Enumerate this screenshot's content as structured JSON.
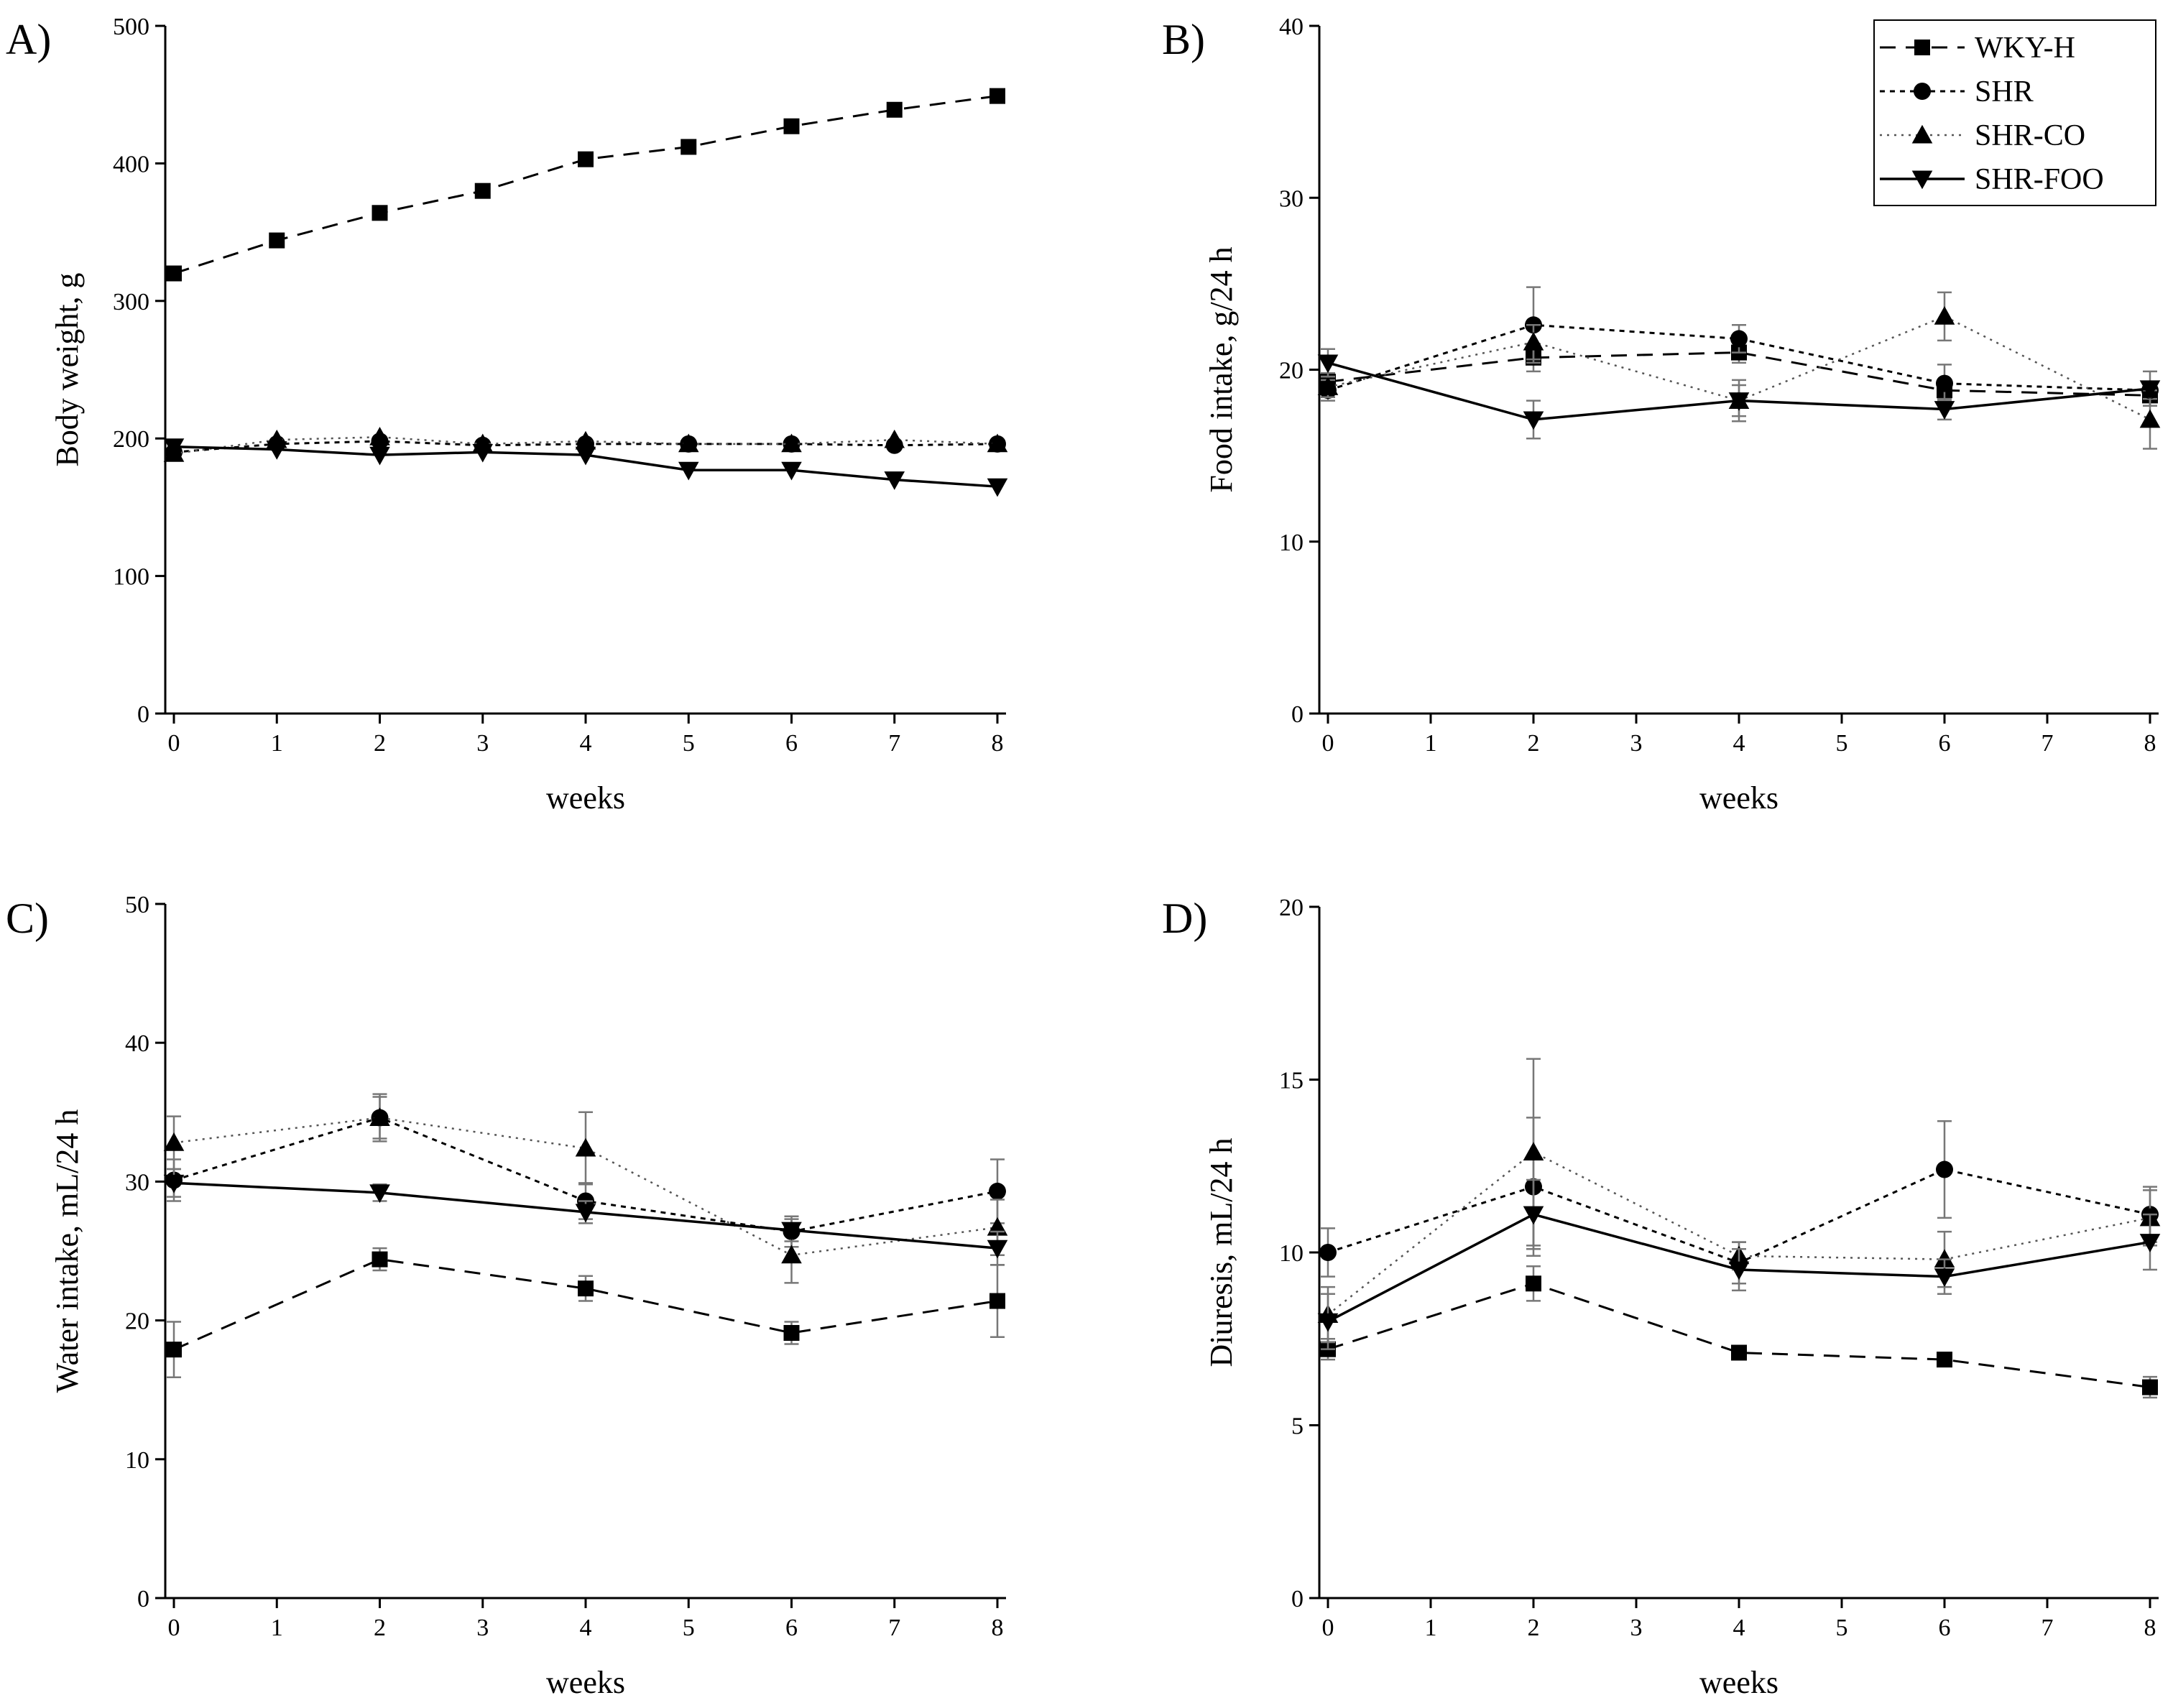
{
  "chart_data": [
    {
      "panel": "A)",
      "type": "line",
      "xlabel": "weeks",
      "ylabel": "Body weight, g",
      "xlim": [
        0,
        8
      ],
      "ylim": [
        0,
        500
      ],
      "xticks": [
        0,
        1,
        2,
        3,
        4,
        5,
        6,
        7,
        8
      ],
      "yticks": [
        0,
        100,
        200,
        300,
        400,
        500
      ],
      "legend": false,
      "series": [
        {
          "name": "WKY-H",
          "x": [
            0,
            1,
            2,
            3,
            4,
            5,
            6,
            7,
            8
          ],
          "values": [
            320,
            344,
            364,
            380,
            403,
            412,
            427,
            439,
            449
          ],
          "errors": [
            0,
            0,
            0,
            0,
            0,
            0,
            0,
            0,
            0
          ]
        },
        {
          "name": "SHR",
          "x": [
            0,
            1,
            2,
            3,
            4,
            5,
            6,
            7,
            8
          ],
          "values": [
            190,
            196,
            198,
            195,
            196,
            196,
            196,
            195,
            196
          ],
          "errors": [
            0,
            0,
            0,
            0,
            0,
            0,
            0,
            0,
            0
          ]
        },
        {
          "name": "SHR-CO",
          "x": [
            0,
            1,
            2,
            3,
            4,
            5,
            6,
            7,
            8
          ],
          "values": [
            189,
            199,
            201,
            196,
            198,
            196,
            196,
            199,
            196
          ],
          "errors": [
            0,
            0,
            0,
            0,
            0,
            0,
            0,
            0,
            0
          ]
        },
        {
          "name": "SHR-FOO",
          "x": [
            0,
            1,
            2,
            3,
            4,
            5,
            6,
            7,
            8
          ],
          "values": [
            194,
            192,
            188,
            190,
            188,
            177,
            177,
            170,
            165
          ],
          "errors": [
            0,
            0,
            0,
            0,
            0,
            0,
            0,
            0,
            0
          ]
        }
      ]
    },
    {
      "panel": "B)",
      "type": "line",
      "xlabel": "weeks",
      "ylabel": "Food intake, g/24 h",
      "xlim": [
        0,
        8
      ],
      "ylim": [
        0,
        40
      ],
      "xticks": [
        0,
        1,
        2,
        3,
        4,
        5,
        6,
        7,
        8
      ],
      "yticks": [
        0,
        10,
        20,
        30,
        40
      ],
      "legend": true,
      "legend_position": "top-right",
      "series": [
        {
          "name": "WKY-H",
          "x": [
            0,
            2,
            4,
            6,
            8
          ],
          "values": [
            19.3,
            20.7,
            21.0,
            18.8,
            18.5
          ],
          "errors": [
            0.5,
            0.8,
            0.6,
            0.6,
            0.6
          ]
        },
        {
          "name": "SHR",
          "x": [
            0,
            2,
            4,
            6,
            8
          ],
          "values": [
            18.8,
            22.6,
            21.8,
            19.2,
            18.8
          ],
          "errors": [
            0.6,
            2.2,
            0.8,
            1.1,
            0.5
          ]
        },
        {
          "name": "SHR-CO",
          "x": [
            0,
            2,
            4,
            6,
            8
          ],
          "values": [
            19.0,
            21.6,
            18.2,
            23.1,
            17.1
          ],
          "errors": [
            0.6,
            1.0,
            1.2,
            1.4,
            1.7
          ]
        },
        {
          "name": "SHR-FOO",
          "x": [
            0,
            2,
            4,
            6,
            8
          ],
          "values": [
            20.4,
            17.1,
            18.2,
            17.7,
            18.9
          ],
          "errors": [
            0.8,
            1.1,
            0.9,
            0.6,
            1.0
          ]
        }
      ]
    },
    {
      "panel": "C)",
      "type": "line",
      "xlabel": "weeks",
      "ylabel": "Water intake, mL/24 h",
      "xlim": [
        0,
        8
      ],
      "ylim": [
        0,
        50
      ],
      "xticks": [
        0,
        1,
        2,
        3,
        4,
        5,
        6,
        7,
        8
      ],
      "yticks": [
        0,
        10,
        20,
        30,
        40,
        50
      ],
      "legend": false,
      "series": [
        {
          "name": "WKY-H",
          "x": [
            0,
            2,
            4,
            6,
            8
          ],
          "values": [
            17.9,
            24.4,
            22.3,
            19.1,
            21.4
          ],
          "errors": [
            2.0,
            0.8,
            0.9,
            0.8,
            2.6
          ]
        },
        {
          "name": "SHR",
          "x": [
            0,
            2,
            4,
            6,
            8
          ],
          "values": [
            30.1,
            34.6,
            28.6,
            26.4,
            29.3
          ],
          "errors": [
            1.5,
            1.5,
            1.3,
            1.1,
            2.3
          ]
        },
        {
          "name": "SHR-CO",
          "x": [
            0,
            2,
            4,
            6,
            8
          ],
          "values": [
            32.8,
            34.6,
            32.4,
            24.7,
            26.7
          ],
          "errors": [
            1.9,
            1.7,
            2.6,
            2.0,
            2.0
          ]
        },
        {
          "name": "SHR-FOO",
          "x": [
            0,
            2,
            4,
            6,
            8
          ],
          "values": [
            29.9,
            29.2,
            27.8,
            26.5,
            25.2
          ],
          "errors": [
            1.0,
            0.6,
            0.8,
            0.8,
            1.2
          ]
        }
      ]
    },
    {
      "panel": "D)",
      "type": "line",
      "xlabel": "weeks",
      "ylabel": "Diuresis, mL/24 h",
      "xlim": [
        0,
        8
      ],
      "ylim": [
        0,
        20
      ],
      "xticks": [
        0,
        1,
        2,
        3,
        4,
        5,
        6,
        7,
        8
      ],
      "yticks": [
        0,
        5,
        10,
        15,
        20
      ],
      "legend": false,
      "series": [
        {
          "name": "WKY-H",
          "x": [
            0,
            2,
            4,
            6,
            8
          ],
          "values": [
            7.2,
            9.1,
            7.1,
            6.9,
            6.1
          ],
          "errors": [
            0.3,
            0.5,
            0.2,
            0.2,
            0.3
          ]
        },
        {
          "name": "SHR",
          "x": [
            0,
            2,
            4,
            6,
            8
          ],
          "values": [
            10.0,
            11.9,
            9.7,
            12.4,
            11.1
          ],
          "errors": [
            0.7,
            2.0,
            0.6,
            1.4,
            0.8
          ]
        },
        {
          "name": "SHR-CO",
          "x": [
            0,
            2,
            4,
            6,
            8
          ],
          "values": [
            8.2,
            12.9,
            9.9,
            9.8,
            11.0
          ],
          "errors": [
            0.8,
            2.7,
            0.4,
            0.8,
            0.8
          ]
        },
        {
          "name": "SHR-FOO",
          "x": [
            0,
            2,
            4,
            6,
            8
          ],
          "values": [
            8.0,
            11.1,
            9.5,
            9.3,
            10.3
          ],
          "errors": [
            0.8,
            1.0,
            0.6,
            0.5,
            0.8
          ]
        }
      ]
    }
  ]
}
